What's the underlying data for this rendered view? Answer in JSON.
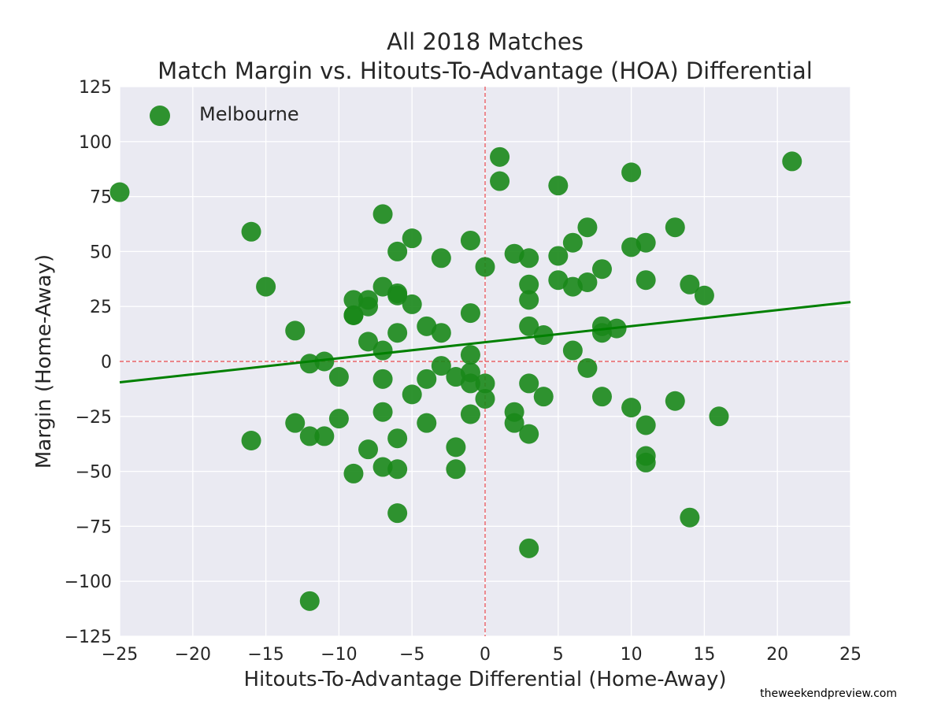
{
  "chart_data": {
    "type": "scatter",
    "title": "All 2018 Matches",
    "subtitle": "Match Margin vs. Hitouts-To-Advantage (HOA) Differential",
    "xlabel": "Hitouts-To-Advantage Differential (Home-Away)",
    "ylabel": "Margin (Home-Away)",
    "xlim": [
      -25,
      25
    ],
    "ylim": [
      -125,
      125
    ],
    "xticks": [
      -25,
      -20,
      -15,
      -10,
      -5,
      0,
      5,
      10,
      15,
      20,
      25
    ],
    "yticks": [
      -125,
      -100,
      -75,
      -50,
      -25,
      0,
      25,
      50,
      75,
      100,
      125
    ],
    "grid": true,
    "legend_position": "top-left",
    "reference_lines": {
      "x": 0,
      "y": 0,
      "color": "#e8474c",
      "style": "dashed"
    },
    "series": [
      {
        "name": "Melbourne",
        "color": "#1a881a",
        "points": [
          [
            -25,
            77
          ],
          [
            -16,
            59
          ],
          [
            -16,
            -36
          ],
          [
            -15,
            34
          ],
          [
            -13,
            14
          ],
          [
            -13,
            -28
          ],
          [
            -12,
            -1
          ],
          [
            -12,
            -34
          ],
          [
            -12,
            -109
          ],
          [
            -11,
            0
          ],
          [
            -11,
            -34
          ],
          [
            -10,
            -7
          ],
          [
            -10,
            -26
          ],
          [
            -9,
            28
          ],
          [
            -9,
            21
          ],
          [
            -9,
            21
          ],
          [
            -9,
            -51
          ],
          [
            -8,
            28
          ],
          [
            -8,
            25
          ],
          [
            -8,
            9
          ],
          [
            -8,
            -40
          ],
          [
            -7,
            67
          ],
          [
            -7,
            34
          ],
          [
            -7,
            5
          ],
          [
            -7,
            -8
          ],
          [
            -7,
            -23
          ],
          [
            -7,
            -48
          ],
          [
            -6,
            50
          ],
          [
            -6,
            31
          ],
          [
            -6,
            30
          ],
          [
            -6,
            13
          ],
          [
            -6,
            -35
          ],
          [
            -6,
            -49
          ],
          [
            -6,
            -69
          ],
          [
            -5,
            56
          ],
          [
            -5,
            26
          ],
          [
            -5,
            -15
          ],
          [
            -4,
            16
          ],
          [
            -4,
            -8
          ],
          [
            -4,
            -28
          ],
          [
            -3,
            47
          ],
          [
            -3,
            13
          ],
          [
            -3,
            -2
          ],
          [
            -2,
            -7
          ],
          [
            -2,
            -39
          ],
          [
            -2,
            -49
          ],
          [
            -1,
            55
          ],
          [
            -1,
            22
          ],
          [
            -1,
            3
          ],
          [
            -1,
            -5
          ],
          [
            -1,
            -10
          ],
          [
            -1,
            -24
          ],
          [
            0,
            43
          ],
          [
            0,
            -10
          ],
          [
            0,
            -17
          ],
          [
            1,
            93
          ],
          [
            1,
            82
          ],
          [
            2,
            49
          ],
          [
            2,
            -23
          ],
          [
            2,
            -28
          ],
          [
            3,
            47
          ],
          [
            3,
            35
          ],
          [
            3,
            28
          ],
          [
            3,
            16
          ],
          [
            3,
            -10
          ],
          [
            3,
            -33
          ],
          [
            3,
            -85
          ],
          [
            4,
            12
          ],
          [
            4,
            -16
          ],
          [
            5,
            80
          ],
          [
            5,
            48
          ],
          [
            5,
            37
          ],
          [
            6,
            54
          ],
          [
            6,
            34
          ],
          [
            6,
            5
          ],
          [
            7,
            61
          ],
          [
            7,
            36
          ],
          [
            7,
            -3
          ],
          [
            8,
            42
          ],
          [
            8,
            16
          ],
          [
            8,
            13
          ],
          [
            8,
            -16
          ],
          [
            9,
            15
          ],
          [
            10,
            86
          ],
          [
            10,
            52
          ],
          [
            10,
            -21
          ],
          [
            11,
            54
          ],
          [
            11,
            37
          ],
          [
            11,
            -29
          ],
          [
            11,
            -43
          ],
          [
            11,
            -46
          ],
          [
            13,
            61
          ],
          [
            13,
            -18
          ],
          [
            14,
            35
          ],
          [
            14,
            -71
          ],
          [
            15,
            30
          ],
          [
            16,
            -25
          ],
          [
            21,
            91
          ]
        ]
      }
    ],
    "fit_line": {
      "x": [
        -25,
        25
      ],
      "y": [
        -9.5,
        27
      ],
      "color": "#008000"
    }
  },
  "credit": "theweekendpreview.com"
}
